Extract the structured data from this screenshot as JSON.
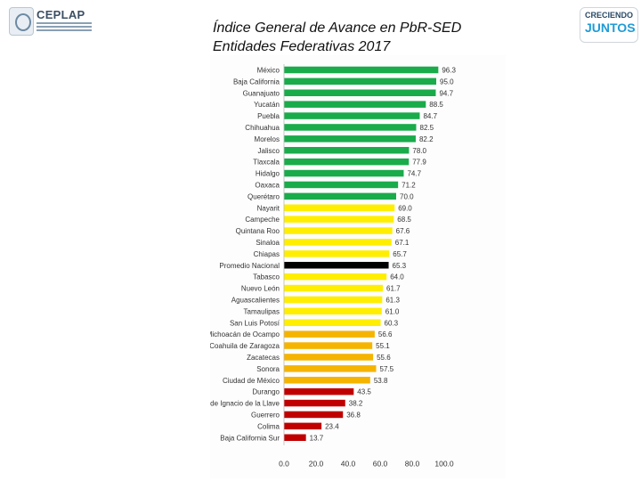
{
  "header": {
    "org_name": "CEPLAP",
    "org_subtitle": "COORDINACIÓN ESTATAL DE PLANEACIÓN Y PROYECTOS",
    "title_line1": "Índice General de Avance en PbR-SED",
    "title_line2": "Entidades Federativas 2017",
    "right_logo_top": "CRECIENDO",
    "right_logo_bottom": "JUNTOS"
  },
  "colors": {
    "green": "#1aab4b",
    "yellow": "#ffee00",
    "orange": "#f5b400",
    "red": "#c00000",
    "black": "#000000"
  },
  "chart_data": {
    "type": "bar",
    "orientation": "horizontal",
    "title": "Índice General de Avance en PbR-SED Entidades Federativas 2017",
    "xlabel": "",
    "ylabel": "",
    "xlim": [
      0,
      100
    ],
    "xticks": [
      "0.0",
      "20.0",
      "40.0",
      "60.0",
      "80.0",
      "100.0"
    ],
    "grid": false,
    "categories": [
      "México",
      "Baja California",
      "Guanajuato",
      "Yucatán",
      "Puebla",
      "Chihuahua",
      "Morelos",
      "Jalisco",
      "Tlaxcala",
      "Hidalgo",
      "Oaxaca",
      "Querétaro",
      "Nayarit",
      "Campeche",
      "Quintana Roo",
      "Sinaloa",
      "Chiapas",
      "Promedio Nacional",
      "Tabasco",
      "Nuevo León",
      "Aguascalientes",
      "Tamaulipas",
      "San Luis Potosí",
      "Michoacán de Ocampo",
      "Coahuila de Zaragoza",
      "Zacatecas",
      "Sonora",
      "Ciudad de México",
      "Durango",
      "Veracruz de Ignacio de la Llave",
      "Guerrero",
      "Colima",
      "Baja California Sur"
    ],
    "values": [
      96.3,
      95.0,
      94.7,
      88.5,
      84.7,
      82.5,
      82.2,
      78.0,
      77.9,
      74.7,
      71.2,
      70.0,
      69.0,
      68.5,
      67.6,
      67.1,
      65.7,
      65.3,
      64.0,
      61.7,
      61.3,
      61.0,
      60.3,
      56.6,
      55.1,
      55.6,
      57.5,
      53.8,
      43.5,
      38.2,
      36.8,
      23.4,
      13.7
    ],
    "value_labels": [
      "96.3",
      "95.0",
      "94.7",
      "88.5",
      "84.7",
      "82.5",
      "82.2",
      "78.0",
      "77.9",
      "74.7",
      "71.2",
      "70.0",
      "69.0",
      "68.5",
      "67.6",
      "67.1",
      "65.7",
      "65.3",
      "64.0",
      "61.7",
      "61.3",
      "61.0",
      "60.3",
      "56.6",
      "55.1",
      "55.6",
      "57.5",
      "53.8",
      "43.5",
      "38.2",
      "36.8",
      "23.4",
      "13.7"
    ],
    "bar_colors": [
      "green",
      "green",
      "green",
      "green",
      "green",
      "green",
      "green",
      "green",
      "green",
      "green",
      "green",
      "green",
      "yellow",
      "yellow",
      "yellow",
      "yellow",
      "yellow",
      "black",
      "yellow",
      "yellow",
      "yellow",
      "yellow",
      "yellow",
      "orange",
      "orange",
      "orange",
      "orange",
      "orange",
      "red",
      "red",
      "red",
      "red",
      "red"
    ]
  }
}
